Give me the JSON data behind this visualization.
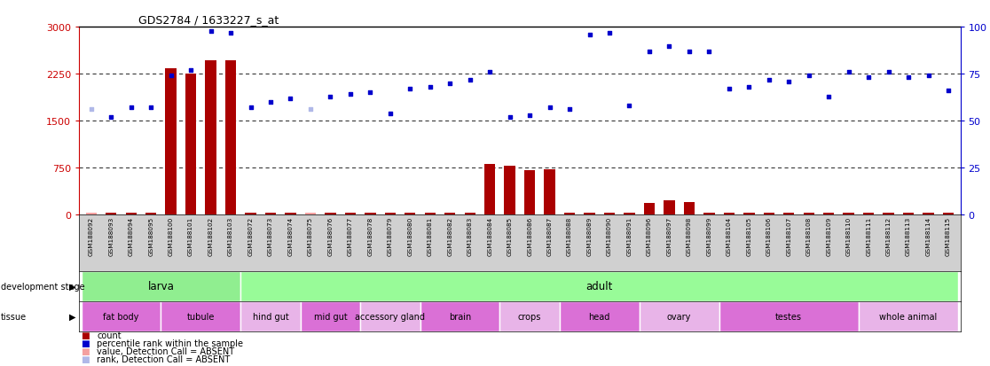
{
  "title": "GDS2784 / 1633227_s_at",
  "samples": [
    "GSM188092",
    "GSM188093",
    "GSM188094",
    "GSM188095",
    "GSM188100",
    "GSM188101",
    "GSM188102",
    "GSM188103",
    "GSM188072",
    "GSM188073",
    "GSM188074",
    "GSM188075",
    "GSM188076",
    "GSM188077",
    "GSM188078",
    "GSM188079",
    "GSM188080",
    "GSM188081",
    "GSM188082",
    "GSM188083",
    "GSM188084",
    "GSM188085",
    "GSM188086",
    "GSM188087",
    "GSM188088",
    "GSM188089",
    "GSM188090",
    "GSM188091",
    "GSM188096",
    "GSM188097",
    "GSM188098",
    "GSM188099",
    "GSM188104",
    "GSM188105",
    "GSM188106",
    "GSM188107",
    "GSM188108",
    "GSM188109",
    "GSM188110",
    "GSM188111",
    "GSM188112",
    "GSM188113",
    "GSM188114",
    "GSM188115"
  ],
  "bar_values": [
    25,
    25,
    25,
    25,
    2340,
    2260,
    2460,
    2460,
    25,
    25,
    25,
    25,
    25,
    25,
    25,
    25,
    25,
    25,
    25,
    25,
    800,
    770,
    700,
    715,
    25,
    25,
    25,
    25,
    175,
    215,
    195,
    25,
    25,
    25,
    25,
    25,
    25,
    25,
    25,
    25,
    25,
    25,
    25,
    25
  ],
  "rank_values": [
    56,
    52,
    57,
    57,
    74,
    77,
    98,
    97,
    57,
    60,
    62,
    56,
    63,
    64,
    65,
    54,
    67,
    68,
    70,
    72,
    76,
    52,
    53,
    57,
    56,
    96,
    97,
    58,
    87,
    90,
    87,
    87,
    67,
    68,
    72,
    71,
    74,
    63,
    76,
    73,
    76,
    73,
    74,
    66
  ],
  "absent_bar_indices": [
    0,
    11
  ],
  "absent_rank_indices": [
    0,
    11
  ],
  "ylim_left": [
    0,
    3000
  ],
  "ylim_right": [
    0,
    100
  ],
  "yticks_left": [
    0,
    750,
    1500,
    2250,
    3000
  ],
  "yticks_right": [
    0,
    25,
    50,
    75,
    100
  ],
  "dotted_lines": [
    750,
    1500,
    2250
  ],
  "dev_stage_groups": [
    {
      "label": "larva",
      "start": 0,
      "end": 7,
      "color": "#90ee90"
    },
    {
      "label": "adult",
      "start": 8,
      "end": 43,
      "color": "#98fb98"
    }
  ],
  "tissue_groups": [
    {
      "label": "fat body",
      "start": 0,
      "end": 3,
      "color": "#da70d6"
    },
    {
      "label": "tubule",
      "start": 4,
      "end": 7,
      "color": "#da70d6"
    },
    {
      "label": "hind gut",
      "start": 8,
      "end": 10,
      "color": "#e8b4e8"
    },
    {
      "label": "mid gut",
      "start": 11,
      "end": 13,
      "color": "#da70d6"
    },
    {
      "label": "accessory gland",
      "start": 14,
      "end": 16,
      "color": "#e8b4e8"
    },
    {
      "label": "brain",
      "start": 17,
      "end": 20,
      "color": "#da70d6"
    },
    {
      "label": "crops",
      "start": 21,
      "end": 23,
      "color": "#e8b4e8"
    },
    {
      "label": "head",
      "start": 24,
      "end": 27,
      "color": "#da70d6"
    },
    {
      "label": "ovary",
      "start": 28,
      "end": 31,
      "color": "#e8b4e8"
    },
    {
      "label": "testes",
      "start": 32,
      "end": 38,
      "color": "#da70d6"
    },
    {
      "label": "whole animal",
      "start": 39,
      "end": 43,
      "color": "#e8b4e8"
    }
  ],
  "bar_color": "#aa0000",
  "rank_color": "#0000cc",
  "absent_bar_color": "#f4a0a0",
  "absent_rank_color": "#b0b8e8",
  "bg_color": "#d0d0d0",
  "plot_bg": "#ffffff",
  "left_axis_color": "#cc0000",
  "right_axis_color": "#0000cc",
  "legend_items": [
    {
      "color": "#aa0000",
      "label": "count"
    },
    {
      "color": "#0000cc",
      "label": "percentile rank within the sample"
    },
    {
      "color": "#f4a0a0",
      "label": "value, Detection Call = ABSENT"
    },
    {
      "color": "#b0b8e8",
      "label": "rank, Detection Call = ABSENT"
    }
  ]
}
